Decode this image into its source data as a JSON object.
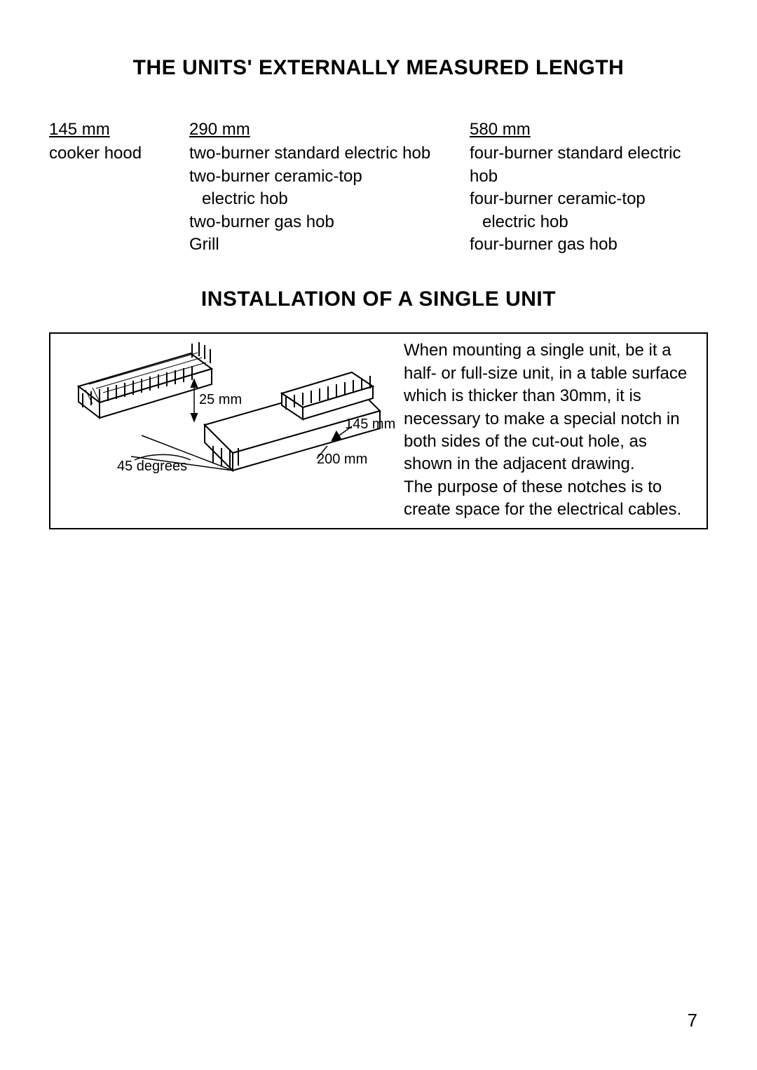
{
  "heading1": "THE UNITS' EXTERNALLY MEASURED LENGTH",
  "heading2": "INSTALLATION OF A SINGLE UNIT",
  "columns": {
    "col1": {
      "header": "145 mm",
      "items": [
        "cooker hood"
      ]
    },
    "col2": {
      "header": "290 mm",
      "items": [
        "two-burner standard electric hob",
        "two-burner ceramic-top",
        "  electric hob",
        "two-burner gas hob",
        "Grill"
      ]
    },
    "col3": {
      "header": "580 mm",
      "items": [
        "four-burner standard electric hob",
        "four-burner ceramic-top",
        "  electric hob",
        "four-burner gas hob"
      ]
    }
  },
  "figure": {
    "labels": {
      "dim25": "25 mm",
      "dim145": "145 mm",
      "dim200": "200 mm",
      "angle": "45 degrees"
    },
    "text": "When mounting a single unit, be it a half- or full-size unit, in a table surface which is thicker than 30mm, it is necessary to make a special notch in both sides of the cut-out hole, as shown in the adjacent drawing.\nThe purpose of  these notches is to create space for the electrical cables."
  },
  "page_number": "7"
}
